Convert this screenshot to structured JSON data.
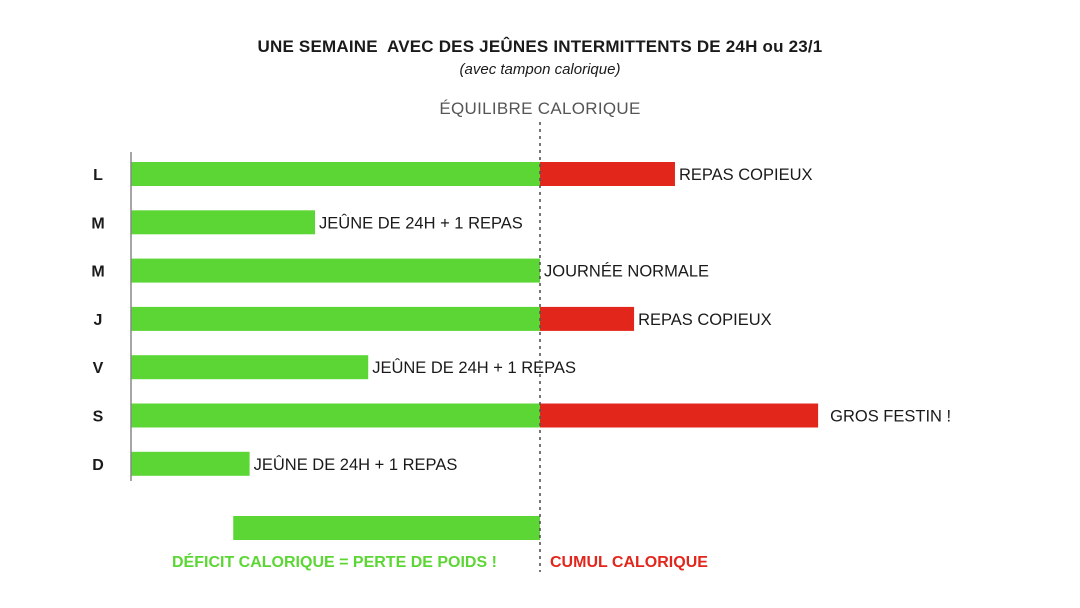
{
  "colors": {
    "deficit": "#5cd635",
    "surplus": "#e3261c",
    "axis": "#888888",
    "divider": "#555555"
  },
  "chart_data": {
    "type": "bar",
    "title": "UNE SEMAINE  AVEC DES JEÛNES INTERMITTENTS DE 24H ou 23/1",
    "subtitle": "(avec tampon calorique)",
    "reference_line_label": "ÉQUILIBRE CALORIQUE",
    "orientation": "horizontal",
    "grid": false,
    "categories": [
      "L",
      "M",
      "M",
      "J",
      "V",
      "S",
      "D"
    ],
    "series": [
      {
        "values": [
          100,
          45,
          100,
          100,
          58,
          100,
          29
        ]
      },
      {
        "values": [
          33,
          0,
          0,
          23,
          0,
          68,
          0
        ]
      }
    ],
    "annotations": [
      "REPAS COPIEUX",
      "JEÛNE DE 24H + 1 REPAS",
      "JOURNÉE NORMALE",
      "REPAS COPIEUX",
      "JEÛNE DE 24H + 1 REPAS",
      "GROS FESTIN !",
      "JEÛNE DE 24H + 1 REPAS"
    ],
    "xlim": [
      0,
      175
    ],
    "summary_bar": {
      "start": 25,
      "end": 100
    },
    "legend": {
      "deficit": "DÉFICIT CALORIQUE = PERTE DE POIDS !",
      "surplus": "CUMUL CALORIQUE"
    }
  }
}
